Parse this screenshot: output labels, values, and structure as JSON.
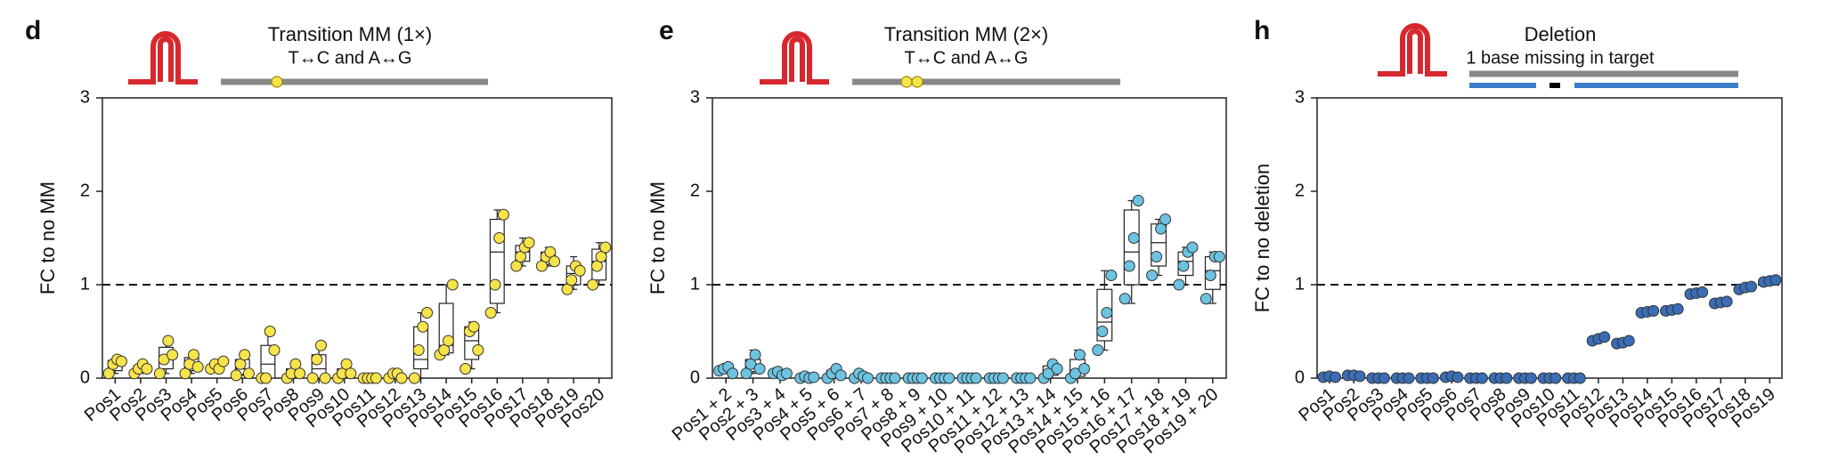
{
  "chart_data": [
    {
      "type": "box",
      "panel": "d",
      "title": "Transition MM (1×)",
      "subtitle": "T↔C and A↔G",
      "ylabel": "FC to no MM",
      "color": "#f7e34a",
      "ylim": [
        0,
        3
      ],
      "yticks": [
        0,
        1,
        2,
        3
      ],
      "refline": 1,
      "categories": [
        "Pos1",
        "Pos2",
        "Pos3",
        "Pos4",
        "Pos5",
        "Pos6",
        "Pos7",
        "Pos8",
        "Pos9",
        "Pos10",
        "Pos11",
        "Pos12",
        "Pos13",
        "Pos14",
        "Pos15",
        "Pos16",
        "Pos17",
        "Pos18",
        "Pos19",
        "Pos20"
      ],
      "boxes": [
        [
          0.05,
          0.08,
          0.15,
          0.19,
          0.2
        ],
        [
          0.05,
          0.07,
          0.1,
          0.13,
          0.15
        ],
        [
          0.05,
          0.1,
          0.22,
          0.33,
          0.4
        ],
        [
          0.05,
          0.08,
          0.14,
          0.22,
          0.25
        ],
        [
          0.1,
          0.1,
          0.13,
          0.17,
          0.18
        ],
        [
          0.03,
          0.04,
          0.1,
          0.2,
          0.25
        ],
        [
          0,
          0,
          0.15,
          0.35,
          0.5
        ],
        [
          0,
          0.03,
          0.05,
          0.1,
          0.15
        ],
        [
          0,
          0,
          0.1,
          0.25,
          0.35
        ],
        [
          0,
          0.02,
          0.05,
          0.1,
          0.15
        ],
        [
          0,
          0,
          0,
          0,
          0
        ],
        [
          0,
          0,
          0.02,
          0.05,
          0.05
        ],
        [
          0,
          0.1,
          0.2,
          0.55,
          0.7
        ],
        [
          0.25,
          0.27,
          0.35,
          0.8,
          1.0
        ],
        [
          0.1,
          0.2,
          0.4,
          0.55,
          0.6
        ],
        [
          0.7,
          0.8,
          1.35,
          1.7,
          1.8
        ],
        [
          1.2,
          1.25,
          1.35,
          1.42,
          1.5
        ],
        [
          1.2,
          1.22,
          1.28,
          1.35,
          1.4
        ],
        [
          0.95,
          1.0,
          1.12,
          1.2,
          1.3
        ],
        [
          1.0,
          1.05,
          1.25,
          1.38,
          1.45
        ]
      ],
      "points": [
        [
          0.05,
          0.15,
          0.2,
          0.18
        ],
        [
          0.05,
          0.1,
          0.15,
          0.1
        ],
        [
          0.05,
          0.2,
          0.4,
          0.25
        ],
        [
          0.05,
          0.15,
          0.25,
          0.12
        ],
        [
          0.1,
          0.15,
          0.1,
          0.18
        ],
        [
          0.03,
          0.15,
          0.25,
          0.05
        ],
        [
          0,
          0,
          0.5,
          0.3
        ],
        [
          0,
          0.05,
          0.15,
          0.05
        ],
        [
          0,
          0.2,
          0.35,
          0
        ],
        [
          0,
          0.05,
          0.15,
          0.05
        ],
        [
          0,
          0,
          0,
          0
        ],
        [
          0,
          0.05,
          0.05,
          0
        ],
        [
          0,
          0.3,
          0.55,
          0.7
        ],
        [
          0.25,
          0.3,
          0.4,
          1.0
        ],
        [
          0.1,
          0.5,
          0.55,
          0.3
        ],
        [
          0.7,
          1.0,
          1.5,
          1.75
        ],
        [
          1.2,
          1.3,
          1.4,
          1.45
        ],
        [
          1.2,
          1.3,
          1.35,
          1.25
        ],
        [
          0.95,
          1.05,
          1.2,
          1.15
        ],
        [
          1.0,
          1.2,
          1.3,
          1.4
        ]
      ]
    },
    {
      "type": "box",
      "panel": "e",
      "title": "Transition MM (2×)",
      "subtitle": "T↔C and A↔G",
      "ylabel": "FC to no MM",
      "color": "#6cc3e2",
      "ylim": [
        0,
        3
      ],
      "yticks": [
        0,
        1,
        2,
        3
      ],
      "refline": 1,
      "categories": [
        "Pos1 + 2",
        "Pos2 + 3",
        "Pos3 + 4",
        "Pos4 + 5",
        "Pos5 + 6",
        "Pos6 + 7",
        "Pos7 + 8",
        "Pos8 + 9",
        "Pos9 + 10",
        "Pos10 + 11",
        "Pos11 + 12",
        "Pos12 + 13",
        "Pos13 + 14",
        "Pos14 + 15",
        "Pos15 + 16",
        "Pos16 + 17",
        "Pos17 + 18",
        "Pos18 + 19",
        "Pos19 + 20"
      ],
      "boxes": [
        [
          0.05,
          0.07,
          0.1,
          0.11,
          0.12
        ],
        [
          0.05,
          0.07,
          0.12,
          0.2,
          0.3
        ],
        [
          0.03,
          0.04,
          0.05,
          0.07,
          0.08
        ],
        [
          0,
          0,
          0.01,
          0.02,
          0.02
        ],
        [
          0,
          0.02,
          0.04,
          0.08,
          0.1
        ],
        [
          0,
          0,
          0.02,
          0.04,
          0.05
        ],
        [
          0,
          0,
          0,
          0,
          0
        ],
        [
          0,
          0,
          0,
          0,
          0
        ],
        [
          0,
          0,
          0,
          0,
          0
        ],
        [
          0,
          0,
          0,
          0,
          0
        ],
        [
          0,
          0,
          0,
          0,
          0
        ],
        [
          0,
          0,
          0,
          0,
          0
        ],
        [
          0,
          0.03,
          0.08,
          0.13,
          0.15
        ],
        [
          0,
          0.02,
          0.07,
          0.2,
          0.3
        ],
        [
          0.3,
          0.4,
          0.6,
          0.95,
          1.15
        ],
        [
          0.8,
          1.0,
          1.35,
          1.8,
          1.9
        ],
        [
          1.1,
          1.2,
          1.45,
          1.65,
          1.7
        ],
        [
          1.0,
          1.1,
          1.25,
          1.35,
          1.4
        ],
        [
          0.8,
          0.95,
          1.15,
          1.3,
          1.35
        ]
      ],
      "points": [
        [
          0.08,
          0.1,
          0.12,
          0.05
        ],
        [
          0.05,
          0.15,
          0.25,
          0.1
        ],
        [
          0.05,
          0.07,
          0.03,
          0.05
        ],
        [
          0,
          0.02,
          0,
          0.01
        ],
        [
          0,
          0.05,
          0.1,
          0.03
        ],
        [
          0,
          0.05,
          0.02,
          0
        ],
        [
          0,
          0,
          0,
          0
        ],
        [
          0,
          0,
          0,
          0
        ],
        [
          0,
          0,
          0,
          0
        ],
        [
          0,
          0,
          0,
          0
        ],
        [
          0,
          0,
          0,
          0
        ],
        [
          0,
          0,
          0,
          0
        ],
        [
          0,
          0.05,
          0.15,
          0.1
        ],
        [
          0,
          0.05,
          0.25,
          0.1
        ],
        [
          0.3,
          0.5,
          0.7,
          1.1
        ],
        [
          0.85,
          1.2,
          1.5,
          1.9
        ],
        [
          1.1,
          1.3,
          1.6,
          1.7
        ],
        [
          1.0,
          1.2,
          1.35,
          1.4
        ],
        [
          0.85,
          1.1,
          1.3,
          1.3
        ]
      ]
    },
    {
      "type": "box",
      "panel": "h",
      "title": "Deletion",
      "subtitle": "1 base missing in target",
      "ylabel": "FC to no deletion",
      "color": "#3a6db5",
      "ylim": [
        0,
        3
      ],
      "yticks": [
        0,
        1,
        2,
        3
      ],
      "refline": 1,
      "categories": [
        "Pos1",
        "Pos2",
        "Pos3",
        "Pos4",
        "Pos5",
        "Pos6",
        "Pos7",
        "Pos8",
        "Pos9",
        "Pos10",
        "Pos11",
        "Pos12",
        "Pos13",
        "Pos14",
        "Pos15",
        "Pos16",
        "Pos17",
        "Pos18",
        "Pos19"
      ],
      "points": [
        [
          0.01,
          0.02,
          0.01
        ],
        [
          0.03,
          0.03,
          0.02
        ],
        [
          0,
          0,
          0
        ],
        [
          0,
          0,
          0
        ],
        [
          0,
          0,
          0
        ],
        [
          0.01,
          0.02,
          0.01
        ],
        [
          0,
          0,
          0
        ],
        [
          0,
          0,
          0
        ],
        [
          0,
          0,
          0
        ],
        [
          0,
          0,
          0
        ],
        [
          0,
          0,
          0
        ],
        [
          0.4,
          0.42,
          0.44
        ],
        [
          0.37,
          0.38,
          0.4
        ],
        [
          0.7,
          0.71,
          0.72
        ],
        [
          0.72,
          0.73,
          0.74
        ],
        [
          0.9,
          0.91,
          0.92
        ],
        [
          0.8,
          0.81,
          0.82
        ],
        [
          0.95,
          0.97,
          0.98
        ],
        [
          1.03,
          1.04,
          1.05
        ]
      ]
    }
  ]
}
